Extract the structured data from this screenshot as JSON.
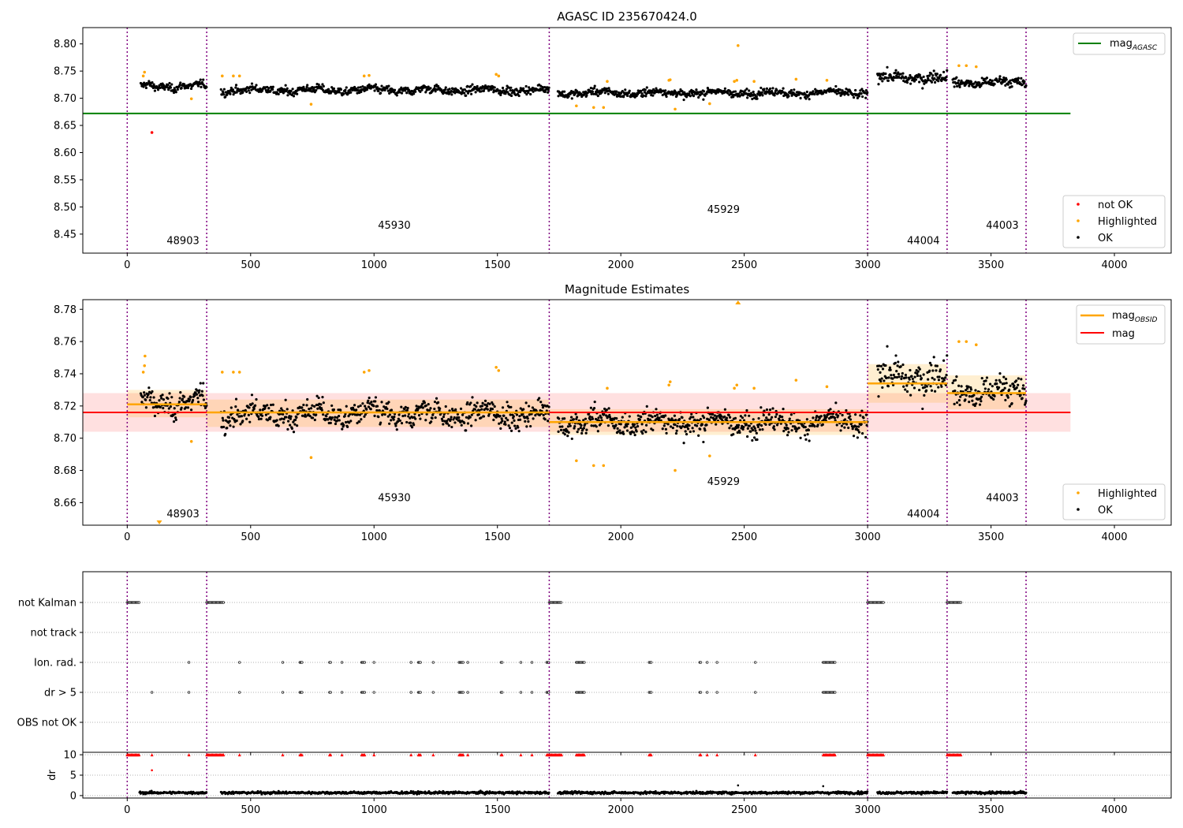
{
  "chart_data": [
    {
      "type": "scatter",
      "title": "AGASC ID 235670424.0",
      "xlim": [
        -180,
        4230
      ],
      "ylim": [
        8.415,
        8.83
      ],
      "xticks": [
        0,
        500,
        1000,
        1500,
        2000,
        2500,
        3000,
        3500,
        4000
      ],
      "yticks": [
        8.45,
        8.5,
        8.55,
        8.6,
        8.65,
        8.7,
        8.75,
        8.8
      ],
      "obsid_boundaries": [
        0,
        322,
        1710,
        3000,
        3322,
        3642
      ],
      "obsid_labels": [
        {
          "label": "48903",
          "x": 160,
          "y": 8.432
        },
        {
          "label": "45930",
          "x": 1016,
          "y": 8.46
        },
        {
          "label": "45929",
          "x": 2350,
          "y": 8.489
        },
        {
          "label": "44004",
          "x": 3160,
          "y": 8.432
        },
        {
          "label": "44003",
          "x": 3480,
          "y": 8.46
        }
      ],
      "lines": [
        {
          "name": "mag_AGASC",
          "color": "#008000",
          "y": 8.672,
          "x": [
            -180,
            3822
          ]
        }
      ],
      "obs_segments": [
        {
          "x": [
            55,
            322
          ],
          "mean": 8.722,
          "spread": 0.006
        },
        {
          "x": [
            380,
            1710
          ],
          "mean": 8.715,
          "spread": 0.006
        },
        {
          "x": [
            1745,
            3000
          ],
          "mean": 8.71,
          "spread": 0.006
        },
        {
          "x": [
            3040,
            3322
          ],
          "mean": 8.738,
          "spread": 0.009
        },
        {
          "x": [
            3345,
            3642
          ],
          "mean": 8.729,
          "spread": 0.007
        }
      ],
      "highlighted": [
        [
          65,
          8.741
        ],
        [
          70,
          8.748
        ],
        [
          260,
          8.699
        ],
        [
          385,
          8.741
        ],
        [
          430,
          8.741
        ],
        [
          455,
          8.741
        ],
        [
          745,
          8.689
        ],
        [
          960,
          8.741
        ],
        [
          980,
          8.742
        ],
        [
          1495,
          8.744
        ],
        [
          1505,
          8.741
        ],
        [
          1820,
          8.686
        ],
        [
          1890,
          8.683
        ],
        [
          1930,
          8.683
        ],
        [
          1945,
          8.731
        ],
        [
          2195,
          8.733
        ],
        [
          2200,
          8.734
        ],
        [
          2220,
          8.68
        ],
        [
          2360,
          8.69
        ],
        [
          2460,
          8.731
        ],
        [
          2470,
          8.733
        ],
        [
          2475,
          8.797
        ],
        [
          2540,
          8.731
        ],
        [
          2710,
          8.735
        ],
        [
          2835,
          8.733
        ],
        [
          3370,
          8.76
        ],
        [
          3400,
          8.76
        ],
        [
          3440,
          8.758
        ]
      ],
      "not_ok": [
        [
          100,
          8.637
        ]
      ],
      "legend_lines": [
        "mag_AGASC"
      ],
      "legend_points": [
        "not OK",
        "Highlighted",
        "OK"
      ]
    },
    {
      "type": "scatter",
      "title": "Magnitude Estimates",
      "xlim": [
        -180,
        4230
      ],
      "ylim": [
        8.646,
        8.786
      ],
      "xticks": [
        0,
        500,
        1000,
        1500,
        2000,
        2500,
        3000,
        3500,
        4000
      ],
      "yticks": [
        8.66,
        8.68,
        8.7,
        8.72,
        8.74,
        8.76,
        8.78
      ],
      "obsid_labels": [
        {
          "label": "48903",
          "x": 160,
          "y": 8.651
        },
        {
          "label": "45930",
          "x": 1016,
          "y": 8.661
        },
        {
          "label": "45929",
          "x": 2350,
          "y": 8.671
        },
        {
          "label": "44004",
          "x": 3160,
          "y": 8.651
        },
        {
          "label": "44003",
          "x": 3480,
          "y": 8.661
        }
      ],
      "mag": {
        "value": 8.716,
        "band": [
          8.704,
          8.728
        ],
        "x": [
          -180,
          3822
        ],
        "color": "#ff0000"
      },
      "mag_obsid": [
        {
          "x": [
            0,
            322
          ],
          "y": 8.721,
          "band": [
            8.713,
            8.73
          ]
        },
        {
          "x": [
            322,
            1710
          ],
          "y": 8.716,
          "band": [
            8.707,
            8.724
          ]
        },
        {
          "x": [
            1710,
            3000
          ],
          "y": 8.71,
          "band": [
            8.702,
            8.718
          ]
        },
        {
          "x": [
            3000,
            3322
          ],
          "y": 8.734,
          "band": [
            8.722,
            8.746
          ]
        },
        {
          "x": [
            3322,
            3642
          ],
          "y": 8.728,
          "band": [
            8.718,
            8.739
          ]
        }
      ],
      "highlighted": [
        [
          65,
          8.741
        ],
        [
          70,
          8.745
        ],
        [
          72,
          8.751
        ],
        [
          260,
          8.698
        ],
        [
          385,
          8.741
        ],
        [
          430,
          8.741
        ],
        [
          455,
          8.741
        ],
        [
          745,
          8.688
        ],
        [
          960,
          8.741
        ],
        [
          980,
          8.742
        ],
        [
          1495,
          8.744
        ],
        [
          1505,
          8.742
        ],
        [
          1820,
          8.686
        ],
        [
          1890,
          8.683
        ],
        [
          1930,
          8.683
        ],
        [
          1945,
          8.731
        ],
        [
          2195,
          8.733
        ],
        [
          2200,
          8.735
        ],
        [
          2220,
          8.68
        ],
        [
          2360,
          8.689
        ],
        [
          2460,
          8.731
        ],
        [
          2470,
          8.733
        ],
        [
          2540,
          8.731
        ],
        [
          2710,
          8.736
        ],
        [
          2835,
          8.732
        ],
        [
          3370,
          8.76
        ],
        [
          3400,
          8.76
        ],
        [
          3440,
          8.758
        ]
      ],
      "offscale_markers": [
        {
          "x": 130,
          "dir": "down"
        },
        {
          "x": 2475,
          "dir": "up"
        }
      ],
      "legend_lines": [
        "mag_OBSID",
        "mag"
      ],
      "legend_points": [
        "Highlighted",
        "OK"
      ]
    },
    {
      "type": "scatter",
      "categories": [
        "not Kalman",
        "not track",
        "Ion. rad.",
        "dr > 5",
        "OBS not OK"
      ],
      "xlim": [
        -180,
        4230
      ],
      "xticks": [
        0,
        500,
        1000,
        1500,
        2000,
        2500,
        3000,
        3500,
        4000
      ],
      "flag_ranges": {
        "not Kalman": [
          [
            0,
            50
          ],
          [
            322,
            390
          ],
          [
            1710,
            1760
          ],
          [
            3000,
            3065
          ],
          [
            3322,
            3380
          ]
        ],
        "not track": [],
        "Ion. rad.": [
          [
            250,
            250
          ],
          [
            455,
            455
          ],
          [
            630,
            630
          ],
          [
            700,
            708
          ],
          [
            820,
            826
          ],
          [
            870,
            870
          ],
          [
            950,
            965
          ],
          [
            1000,
            1000
          ],
          [
            1150,
            1152
          ],
          [
            1180,
            1190
          ],
          [
            1240,
            1240
          ],
          [
            1345,
            1362
          ],
          [
            1380,
            1380
          ],
          [
            1515,
            1520
          ],
          [
            1595,
            1598
          ],
          [
            1640,
            1642
          ],
          [
            1700,
            1710
          ],
          [
            1820,
            1852
          ],
          [
            2115,
            2125
          ],
          [
            2320,
            2325
          ],
          [
            2350,
            2350
          ],
          [
            2390,
            2390
          ],
          [
            2545,
            2545
          ],
          [
            2820,
            2870
          ]
        ],
        "dr > 5": [
          [
            100,
            100
          ],
          [
            250,
            250
          ],
          [
            455,
            455
          ],
          [
            630,
            630
          ],
          [
            700,
            708
          ],
          [
            820,
            826
          ],
          [
            870,
            870
          ],
          [
            950,
            965
          ],
          [
            1000,
            1000
          ],
          [
            1150,
            1152
          ],
          [
            1180,
            1190
          ],
          [
            1240,
            1240
          ],
          [
            1345,
            1362
          ],
          [
            1380,
            1380
          ],
          [
            1515,
            1520
          ],
          [
            1595,
            1598
          ],
          [
            1640,
            1642
          ],
          [
            1700,
            1710
          ],
          [
            1820,
            1852
          ],
          [
            2115,
            2125
          ],
          [
            2320,
            2325
          ],
          [
            2350,
            2350
          ],
          [
            2390,
            2390
          ],
          [
            2545,
            2545
          ],
          [
            2820,
            2870
          ]
        ],
        "OBS not OK": []
      }
    },
    {
      "type": "scatter",
      "ylabel": "dr",
      "xlim": [
        -180,
        4230
      ],
      "ylim": [
        -0.6,
        10.6
      ],
      "xticks": [
        0,
        500,
        1000,
        1500,
        2000,
        2500,
        3000,
        3500,
        4000
      ],
      "yticks": [
        0,
        5,
        10
      ],
      "clip_value": 10,
      "above_threshold_x": [
        [
          0,
          50
        ],
        [
          100,
          100
        ],
        [
          250,
          250
        ],
        [
          322,
          390
        ],
        [
          455,
          455
        ],
        [
          630,
          630
        ],
        [
          700,
          708
        ],
        [
          820,
          826
        ],
        [
          870,
          870
        ],
        [
          950,
          965
        ],
        [
          1000,
          1000
        ],
        [
          1150,
          1152
        ],
        [
          1180,
          1190
        ],
        [
          1240,
          1240
        ],
        [
          1345,
          1362
        ],
        [
          1380,
          1380
        ],
        [
          1515,
          1520
        ],
        [
          1595,
          1598
        ],
        [
          1640,
          1642
        ],
        [
          1700,
          1760
        ],
        [
          1820,
          1852
        ],
        [
          2115,
          2125
        ],
        [
          2320,
          2325
        ],
        [
          2350,
          2350
        ],
        [
          2390,
          2390
        ],
        [
          2545,
          2545
        ],
        [
          2820,
          2870
        ],
        [
          3000,
          3065
        ],
        [
          3322,
          3380
        ]
      ],
      "outliers": [
        [
          100,
          6.2
        ],
        [
          2475,
          2.5
        ],
        [
          2820,
          2.3
        ]
      ],
      "ok_ranges": [
        [
          50,
          322
        ],
        [
          380,
          1710
        ],
        [
          1745,
          3000
        ],
        [
          3040,
          3322
        ],
        [
          3345,
          3642
        ]
      ],
      "typical_dr": 0.7
    }
  ],
  "colors": {
    "ok": "#000000",
    "highlighted": "#ffa500",
    "not_ok": "#ff0000",
    "boundary": "#800080",
    "mag_agasc": "#008000",
    "mag": "#ff0000",
    "mag_obsid": "#ffa500"
  }
}
